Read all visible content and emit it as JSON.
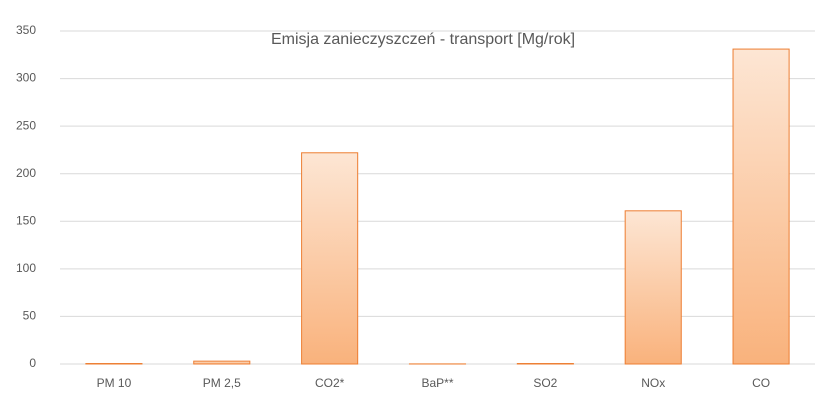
{
  "chart_data": {
    "type": "bar",
    "title": "Emisja zanieczyszczeń - transport [Mg/rok]",
    "categories": [
      "PM 10",
      "PM 2,5",
      "CO2*",
      "BaP**",
      "SO2",
      "NOx",
      "CO"
    ],
    "values": [
      0.5,
      3,
      222,
      0.1,
      0.5,
      161,
      331
    ],
    "color": "#ed7d31",
    "ylim": [
      0,
      350
    ],
    "yticks": [
      0,
      50,
      100,
      150,
      200,
      250,
      300,
      350
    ],
    "grid": true
  }
}
